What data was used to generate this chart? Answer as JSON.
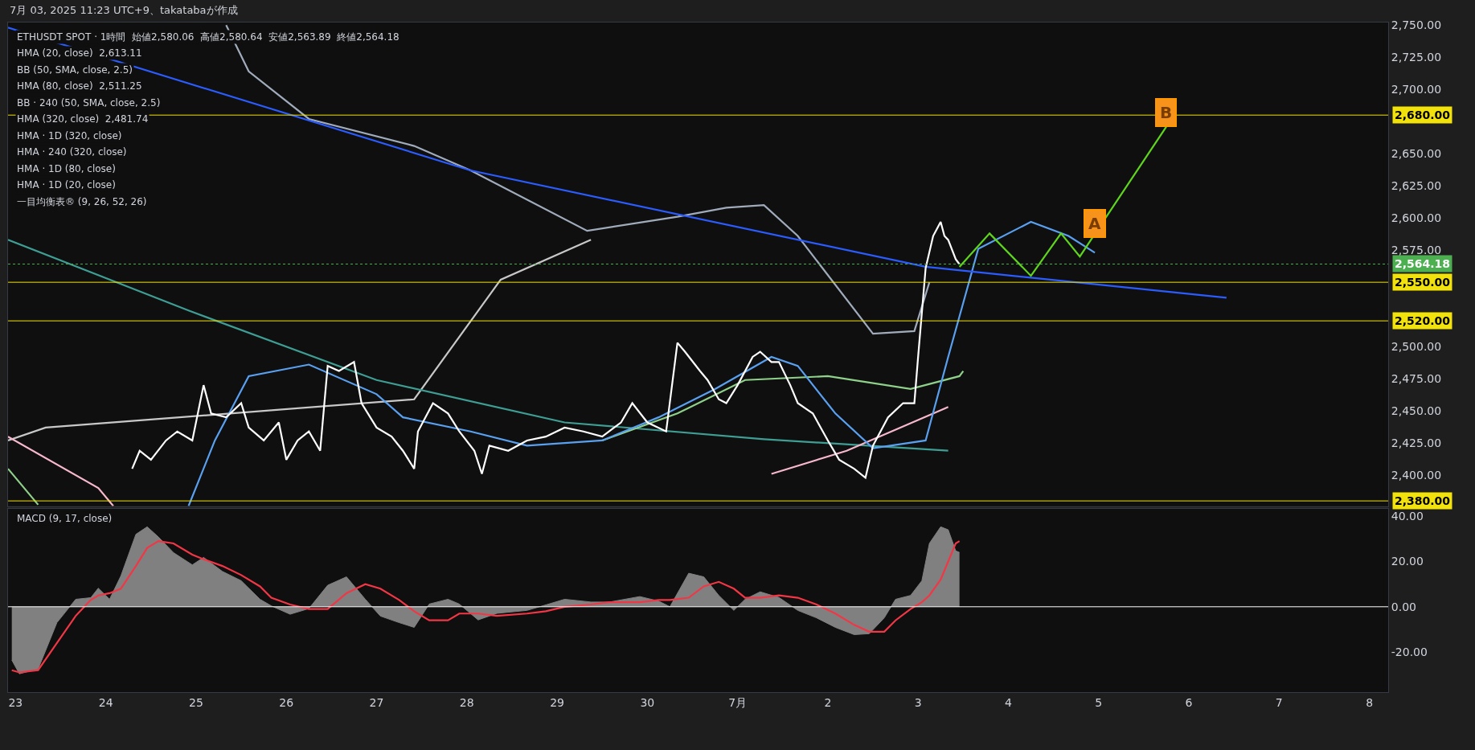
{
  "chart_data": [
    {
      "type": "line",
      "title": "7月 03, 2025 11:23 UTC+9、takatabaが作成",
      "subtitle": "ETHUSDT SPOT · 1時間  始値2,580.06  高値2,580.64  安値2,563.89  終値2,564.18",
      "annotations": [
        "HMA (20, close)  2,613.11",
        "BB (50, SMA, close, 2.5)",
        "HMA (80, close)  2,511.25",
        "BB · 240 (50, SMA, close, 2.5)",
        "HMA (320, close)  2,481.74",
        "HMA · 1D (320, close)",
        "HMA · 240 (320, close)",
        "HMA · 1D (80, close)",
        "HMA · 1D (20, close)",
        "一目均衡表® (9, 26, 52, 26)",
        {
          "text": "A",
          "x": "2025-07-04T23:00",
          "y": 2596
        },
        {
          "text": "B",
          "x": "2025-07-05T18:00",
          "y": 2682
        }
      ],
      "series": [
        {
          "type": "line",
          "color": "#a0acbc",
          "x": [
            "2025-06-25T08:00",
            "2025-06-25T14:00",
            "2025-06-26T06:00",
            "2025-06-27T10:00",
            "2025-06-28T01:00",
            "2025-06-29T08:00",
            "2025-06-30T08:00",
            "2025-06-30T21:00",
            "2025-07-01T07:00",
            "2025-07-01T16:00",
            "2025-07-02T12:00",
            "2025-07-02T23:00",
            "2025-07-03T03:00"
          ],
          "values": [
            2750,
            2714,
            2677,
            2656,
            2637,
            2590,
            2601,
            2608,
            2610,
            2586,
            2510,
            2512,
            2550
          ]
        },
        {
          "type": "line",
          "color": "#c8c8c8",
          "x": [
            "2025-06-22T22:00",
            "2025-06-23T08:00",
            "2025-06-27T10:00",
            "2025-06-28T09:00",
            "2025-06-29T09:00"
          ],
          "values": [
            2427,
            2437,
            2459,
            2552,
            2583
          ]
        },
        {
          "type": "line",
          "color": "#3f9e94",
          "x": [
            "2025-06-22T22:00",
            "2025-06-24T22:00",
            "2025-06-27T00:00",
            "2025-06-29T02:00",
            "2025-07-01T07:00",
            "2025-07-03T08:00"
          ],
          "values": [
            2583,
            2528,
            2474,
            2441,
            2428,
            2419
          ]
        },
        {
          "type": "line",
          "color": "#8fd18a",
          "x": [
            "2025-06-22T22:00",
            "2025-06-23T06:00",
            "2025-06-27T22:00",
            "2025-06-29T12:00",
            "2025-06-30T08:00",
            "2025-07-01T02:00",
            "2025-07-02T00:00",
            "2025-07-02T22:00",
            "2025-07-03T11:00",
            "2025-07-03T12:00"
          ],
          "values": [
            2405,
            2377,
            null,
            2427,
            2448,
            2474,
            2477,
            2467,
            2477,
            2481
          ]
        },
        {
          "type": "line",
          "color": "#f7b8cc",
          "x": [
            "2025-06-22T22:00",
            "2025-06-23T22:00",
            "2025-06-24T02:00",
            "2025-06-30T11:00",
            "2025-07-01T09:00",
            "2025-07-02T05:00",
            "2025-07-03T08:00"
          ],
          "values": [
            2430,
            2390,
            2376,
            null,
            2401,
            2419,
            2453
          ]
        },
        {
          "type": "line",
          "color": "#5aa0f0",
          "x": [
            "2025-06-24T22:00",
            "2025-06-25T05:00",
            "2025-06-25T14:00",
            "2025-06-26T06:00",
            "2025-06-27T00:00",
            "2025-06-27T07:00",
            "2025-06-28T01:00",
            "2025-06-28T16:00",
            "2025-06-29T12:00",
            "2025-06-30T03:00",
            "2025-06-30T18:00",
            "2025-07-01T09:00",
            "2025-07-01T16:00",
            "2025-07-02T02:00",
            "2025-07-02T12:00",
            "2025-07-03T02:00",
            "2025-07-03T08:00",
            "2025-07-03T16:00",
            "2025-07-04T06:00",
            "2025-07-04T16:00",
            "2025-07-04T23:00"
          ],
          "values": [
            2376,
            2427,
            2477,
            2486,
            2463,
            2445,
            2434,
            2423,
            2427,
            2445,
            2467,
            2492,
            2485,
            2448,
            2421,
            2427,
            2492,
            2576,
            2597,
            2586,
            2573
          ]
        },
        {
          "type": "line",
          "color": "#2b5cff",
          "x": [
            "2025-06-22T22:00",
            "2025-06-28T01:00",
            "2025-07-03T02:00",
            "2025-07-06T10:00"
          ],
          "values": [
            2748,
            2637,
            2562,
            2538
          ]
        },
        {
          "type": "line",
          "color": "#ffffff",
          "x": [
            "2025-06-24T07:00",
            "2025-06-24T09:00",
            "2025-06-24T12:00",
            "2025-06-24T16:00",
            "2025-06-24T19:00",
            "2025-06-24T23:00",
            "2025-06-25T02:00",
            "2025-06-25T04:00",
            "2025-06-25T08:00",
            "2025-06-25T12:00",
            "2025-06-25T14:00",
            "2025-06-25T18:00",
            "2025-06-25T22:00",
            "2025-06-26T00:00",
            "2025-06-26T03:00",
            "2025-06-26T06:00",
            "2025-06-26T09:00",
            "2025-06-26T11:00",
            "2025-06-26T14:00",
            "2025-06-26T18:00",
            "2025-06-26T20:00",
            "2025-06-27T00:00",
            "2025-06-27T04:00",
            "2025-06-27T07:00",
            "2025-06-27T10:00",
            "2025-06-27T11:00",
            "2025-06-27T15:00",
            "2025-06-27T19:00",
            "2025-06-27T22:00",
            "2025-06-28T02:00",
            "2025-06-28T04:00",
            "2025-06-28T06:00",
            "2025-06-28T11:00",
            "2025-06-28T16:00",
            "2025-06-28T21:00",
            "2025-06-29T02:00",
            "2025-06-29T07:00",
            "2025-06-29T12:00",
            "2025-06-29T17:00",
            "2025-06-29T20:00",
            "2025-06-30T00:00",
            "2025-06-30T05:00",
            "2025-06-30T08:00",
            "2025-06-30T10:00",
            "2025-06-30T14:00",
            "2025-06-30T16:00",
            "2025-06-30T19:00",
            "2025-06-30T21:00",
            "2025-07-01T00:00",
            "2025-07-01T04:00",
            "2025-07-01T06:00",
            "2025-07-01T09:00",
            "2025-07-01T11:00",
            "2025-07-01T14:00",
            "2025-07-01T16:00",
            "2025-07-01T20:00",
            "2025-07-02T00:00",
            "2025-07-02T03:00",
            "2025-07-02T07:00",
            "2025-07-02T10:00",
            "2025-07-02T12:00",
            "2025-07-02T16:00",
            "2025-07-02T20:00",
            "2025-07-02T23:00",
            "2025-07-03T00:00",
            "2025-07-03T02:00",
            "2025-07-03T04:00",
            "2025-07-03T06:00",
            "2025-07-03T07:00",
            "2025-07-03T08:00",
            "2025-07-03T10:00",
            "2025-07-03T11:00"
          ],
          "values": [
            2405,
            2419,
            2412,
            2427,
            2434,
            2427,
            2470,
            2448,
            2445,
            2456,
            2437,
            2427,
            2441,
            2412,
            2427,
            2434,
            2419,
            2485,
            2481,
            2488,
            2456,
            2437,
            2430,
            2419,
            2405,
            2434,
            2456,
            2448,
            2434,
            2419,
            2401,
            2423,
            2419,
            2427,
            2430,
            2437,
            2434,
            2430,
            2441,
            2456,
            2441,
            2434,
            2503,
            2496,
            2481,
            2474,
            2459,
            2456,
            2470,
            2492,
            2496,
            2488,
            2488,
            2470,
            2456,
            2448,
            2427,
            2412,
            2405,
            2398,
            2423,
            2445,
            2456,
            2456,
            2492,
            2561,
            2586,
            2597,
            2586,
            2583,
            2568,
            2564
          ]
        },
        {
          "type": "line",
          "color": "#5fd61c",
          "x": [
            "2025-07-03T11:00",
            "2025-07-03T19:00",
            "2025-07-04T06:00",
            "2025-07-04T14:00",
            "2025-07-04T19:00",
            "2025-07-05T18:00"
          ],
          "values": [
            2562,
            2588,
            2555,
            2588,
            2570,
            2671
          ]
        }
      ],
      "xlim": [
        "2025-06-22T22:00",
        "2025-07-08T05:00"
      ],
      "ylim": [
        2376,
        2752
      ],
      "yticks": [
        {
          "value": 2400,
          "label": "2,400.00"
        },
        {
          "value": 2425,
          "label": "2,425.00"
        },
        {
          "value": 2450,
          "label": "2,450.00"
        },
        {
          "value": 2475,
          "label": "2,475.00"
        },
        {
          "value": 2500,
          "label": "2,500.00"
        },
        {
          "value": 2575,
          "label": "2,575.00"
        },
        {
          "value": 2600,
          "label": "2,600.00"
        },
        {
          "value": 2625,
          "label": "2,625.00"
        },
        {
          "value": 2650,
          "label": "2,650.00"
        },
        {
          "value": 2700,
          "label": "2,700.00"
        },
        {
          "value": 2725,
          "label": "2,725.00"
        },
        {
          "value": 2750,
          "label": "2,750.00"
        }
      ],
      "ref_lines": [
        {
          "axis": "y",
          "value": 2680,
          "label": "2,680.00",
          "color": "#f2e20c"
        },
        {
          "axis": "y",
          "value": 2550,
          "label": "2,550.00",
          "color": "#f2e20c"
        },
        {
          "axis": "y",
          "value": 2520,
          "label": "2,520.00",
          "color": "#f2e20c"
        },
        {
          "axis": "y",
          "value": 2380,
          "label": "2,380.00",
          "color": "#f2e20c"
        },
        {
          "axis": "y",
          "value": 2564.18,
          "label": "2,564.18",
          "color": "#4caf50",
          "line_style": "dotted"
        }
      ],
      "tick_labels": "y"
    },
    {
      "type": "area",
      "annotations": [
        "MACD (9, 17, close)"
      ],
      "x": [
        "2025-06-22T23:00",
        "2025-06-23T01:00",
        "2025-06-23T06:00",
        "2025-06-23T11:00",
        "2025-06-23T16:00",
        "2025-06-23T20:00",
        "2025-06-23T22:00",
        "2025-06-24T01:00",
        "2025-06-24T04:00",
        "2025-06-24T08:00",
        "2025-06-24T11:00",
        "2025-06-24T14:00",
        "2025-06-24T18:00",
        "2025-06-24T23:00",
        "2025-06-25T02:00",
        "2025-06-25T07:00",
        "2025-06-25T12:00",
        "2025-06-25T17:00",
        "2025-06-25T20:00",
        "2025-06-26T01:00",
        "2025-06-26T06:00",
        "2025-06-26T11:00",
        "2025-06-26T16:00",
        "2025-06-26T21:00",
        "2025-06-27T01:00",
        "2025-06-27T06:00",
        "2025-06-27T10:00",
        "2025-06-27T14:00",
        "2025-06-27T19:00",
        "2025-06-27T22:00",
        "2025-06-28T03:00",
        "2025-06-28T08:00",
        "2025-06-28T16:00",
        "2025-06-28T21:00",
        "2025-06-29T02:00",
        "2025-06-29T09:00",
        "2025-06-29T14:00",
        "2025-06-29T22:00",
        "2025-06-30T03:00",
        "2025-06-30T06:00",
        "2025-06-30T11:00",
        "2025-06-30T15:00",
        "2025-06-30T19:00",
        "2025-06-30T23:00",
        "2025-07-01T02:00",
        "2025-07-01T06:00",
        "2025-07-01T11:00",
        "2025-07-01T16:00",
        "2025-07-01T21:00",
        "2025-07-02T02:00",
        "2025-07-02T07:00",
        "2025-07-02T11:00",
        "2025-07-02T15:00",
        "2025-07-02T18:00",
        "2025-07-02T22:00",
        "2025-07-03T01:00",
        "2025-07-03T03:00",
        "2025-07-03T06:00",
        "2025-07-03T08:00",
        "2025-07-03T10:00",
        "2025-07-03T11:00"
      ],
      "series": [
        {
          "color": "#808080",
          "values": [
            -23.5,
            -29.6,
            -27.5,
            -7,
            3.3,
            4,
            8.2,
            3.3,
            13.6,
            32,
            35.3,
            30.8,
            23.9,
            18.5,
            21.8,
            15.6,
            11.5,
            3.3,
            0.4,
            -3.3,
            -0.8,
            9.5,
            13.2,
            3.3,
            -4.1,
            -7,
            -9.1,
            1.2,
            3.3,
            1.2,
            -5.8,
            -2.9,
            -1.6,
            0.8,
            3.3,
            2.1,
            2.1,
            4.5,
            2.5,
            0,
            14.8,
            13.2,
            5,
            -1.6,
            3.3,
            6.6,
            4.1,
            -1.6,
            -4.9,
            -9.1,
            -12.3,
            -11.9,
            -4.9,
            3.3,
            5,
            11.5,
            28,
            35.3,
            34,
            24.7,
            24
          ]
        },
        {
          "type": "line",
          "color": "#f23645",
          "values": [
            -28,
            -29,
            -28,
            -16,
            -4,
            3,
            5,
            6,
            8,
            18,
            26,
            29,
            28,
            23,
            21,
            18,
            14,
            9,
            4,
            1,
            -1,
            -1,
            6,
            10,
            8,
            3,
            -2,
            -6,
            -6,
            -3,
            -3,
            -4,
            -3,
            -2,
            0,
            1,
            2,
            2,
            3,
            3,
            4,
            9,
            11,
            8,
            4,
            4,
            5,
            4,
            1,
            -3,
            -8,
            -11,
            -11,
            -6,
            -1,
            2,
            5,
            12,
            20,
            28,
            29
          ]
        }
      ],
      "xlim": [
        "2025-06-22T22:00",
        "2025-07-08T05:00"
      ],
      "xticks": [
        {
          "value": "2025-06-23",
          "label": "23"
        },
        {
          "value": "2025-06-24",
          "label": "24"
        },
        {
          "value": "2025-06-25",
          "label": "25"
        },
        {
          "value": "2025-06-26",
          "label": "26"
        },
        {
          "value": "2025-06-27",
          "label": "27"
        },
        {
          "value": "2025-06-28",
          "label": "28"
        },
        {
          "value": "2025-06-29",
          "label": "29"
        },
        {
          "value": "2025-06-30",
          "label": "30"
        },
        {
          "value": "2025-07-01",
          "label": "7月"
        },
        {
          "value": "2025-07-02",
          "label": "2"
        },
        {
          "value": "2025-07-03",
          "label": "3"
        },
        {
          "value": "2025-07-04",
          "label": "4"
        },
        {
          "value": "2025-07-05",
          "label": "5"
        },
        {
          "value": "2025-07-06",
          "label": "6"
        },
        {
          "value": "2025-07-07",
          "label": "7"
        },
        {
          "value": "2025-07-08",
          "label": "8"
        }
      ],
      "ylim": [
        -37.7,
        43.3
      ],
      "yticks": [
        {
          "value": -20,
          "label": "-20.00"
        },
        {
          "value": 0,
          "label": "0.00"
        },
        {
          "value": 20,
          "label": "20.00"
        },
        {
          "value": 40,
          "label": "40.00"
        }
      ],
      "ref_lines": [
        {
          "axis": "y",
          "value": 0,
          "color": "#ffffff"
        }
      ]
    }
  ]
}
